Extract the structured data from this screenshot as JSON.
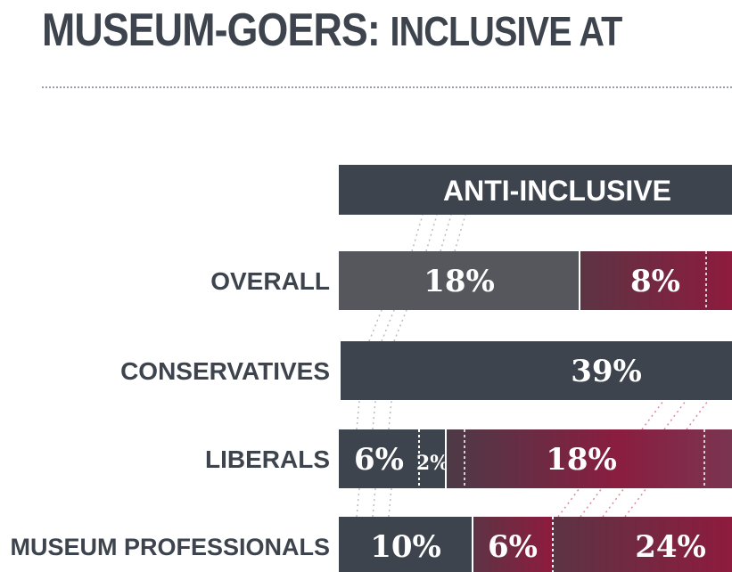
{
  "title": {
    "part1": "MUSEUM-GOERS:",
    "part2": "INCLUSIVE AT"
  },
  "colors": {
    "title": "#3d444d",
    "dark": "#3d444d",
    "gray": "#55575d",
    "maroon_start": "#5c3444",
    "maroon_end": "#8e1b3e",
    "connector": "#b9bcc4",
    "connector_red": "#d98a9a"
  },
  "chart_data": {
    "type": "bar",
    "stacked": true,
    "orientation": "horizontal",
    "header": "ANTI-INCLUSIVE",
    "categories": [
      "OVERALL",
      "CONSERVATIVES",
      "LIBERALS",
      "MUSEUM PROFESSIONALS"
    ],
    "rows": [
      {
        "category": "OVERALL",
        "segments": [
          {
            "value": 18,
            "label": "18%",
            "color": "gray"
          },
          {
            "value": 8,
            "label": "8%",
            "color": "maroon"
          }
        ]
      },
      {
        "category": "CONSERVATIVES",
        "segments": [
          {
            "value": 39,
            "label": "39%",
            "color": "dark"
          }
        ]
      },
      {
        "category": "LIBERALS",
        "segments": [
          {
            "value": 6,
            "label": "6%",
            "color": "dark"
          },
          {
            "value": 2,
            "label": "2%",
            "color": "dark"
          },
          {
            "value": 18,
            "label": "18%",
            "color": "maroon"
          }
        ]
      },
      {
        "category": "MUSEUM PROFESSIONALS",
        "segments": [
          {
            "value": 10,
            "label": "10%",
            "color": "dark"
          },
          {
            "value": 6,
            "label": "6%",
            "color": "maroon"
          },
          {
            "value": 24,
            "label": "24%",
            "color": "maroon"
          }
        ]
      }
    ]
  }
}
